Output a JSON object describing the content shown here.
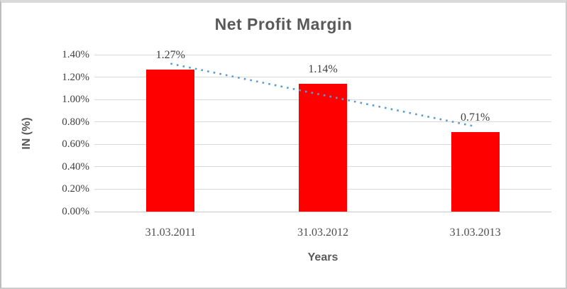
{
  "chart_data": {
    "type": "bar",
    "title": "Net Profit Margin",
    "categories": [
      "31.03.2011",
      "31.03.2012",
      "31.03.2013"
    ],
    "values": [
      1.27,
      1.14,
      0.71
    ],
    "data_labels": [
      "1.27%",
      "1.14%",
      "0.71%"
    ],
    "xlabel": "Years",
    "ylabel": "IN (%)",
    "ylim": [
      0,
      1.4
    ],
    "ytick_step": 0.2,
    "ytick_labels": [
      "0.00%",
      "0.20%",
      "0.40%",
      "0.60%",
      "0.80%",
      "1.00%",
      "1.20%",
      "1.40%"
    ],
    "grid": true,
    "legend": "none",
    "bar_color": "#ff0000",
    "gridline_color": "#d9d9d9",
    "title_color": "#595959",
    "trendline": {
      "type": "linear",
      "style": "dotted",
      "color": "#5b9bd5",
      "fit_values": [
        1.32,
        0.76
      ]
    }
  }
}
